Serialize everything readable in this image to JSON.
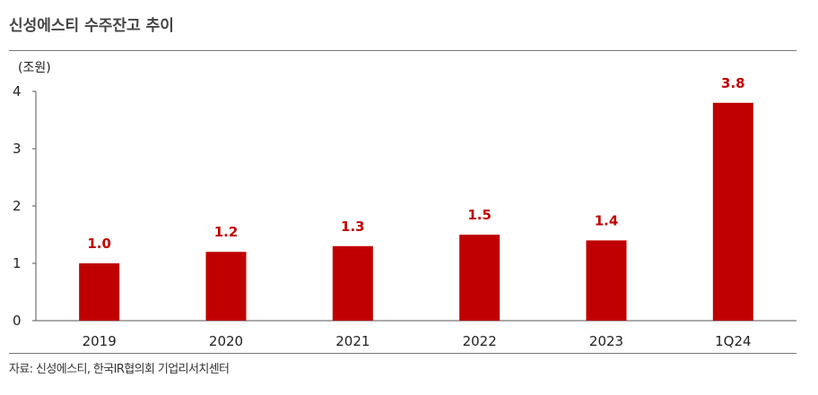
{
  "title": "신성에스티 수주잔고 추이",
  "source": "자료: 신성에스티, 한국IR협의회 기업리서치센터",
  "chart_data": {
    "type": "bar",
    "title": "신성에스티 수주잔고 추이",
    "ylabel": "(조원)",
    "xlabel": "",
    "categories": [
      "2019",
      "2020",
      "2021",
      "2022",
      "2023",
      "1Q24"
    ],
    "values": [
      1.0,
      1.2,
      1.3,
      1.5,
      1.4,
      3.8
    ],
    "data_labels": [
      "1.0",
      "1.2",
      "1.3",
      "1.5",
      "1.4",
      "3.8"
    ],
    "ylim": [
      0,
      4
    ],
    "yticks": [
      0,
      1,
      2,
      3,
      4
    ],
    "grid": false,
    "legend": "none",
    "bar_color": "#c00000",
    "label_color": "#c00000"
  }
}
